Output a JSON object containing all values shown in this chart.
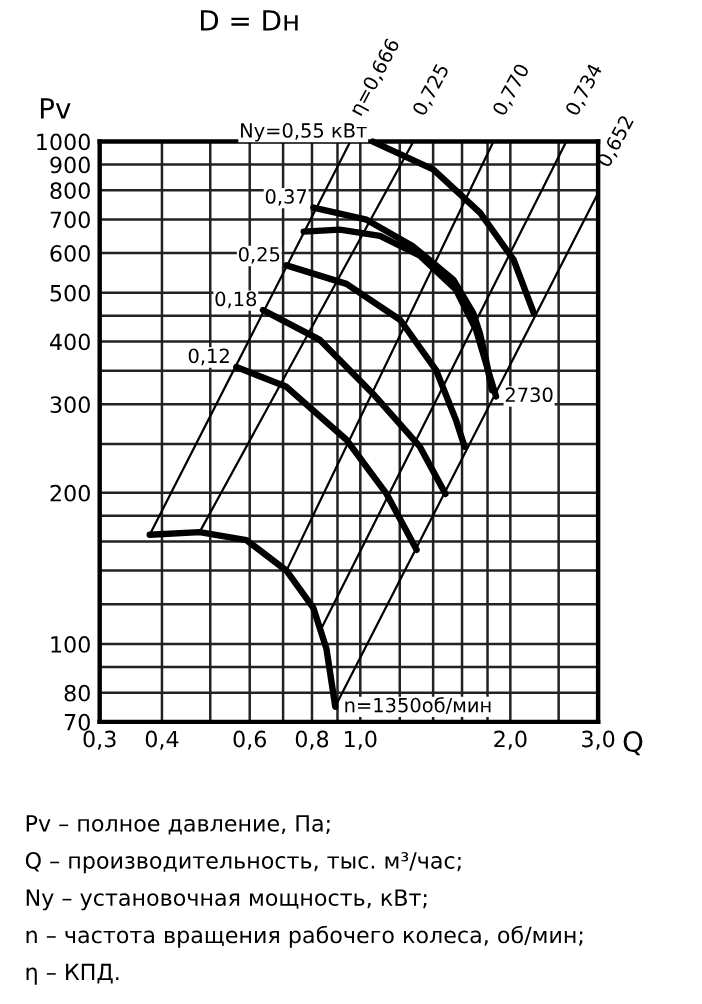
{
  "chart_data": {
    "type": "line",
    "title": "D = Dн",
    "xlabel": "Q",
    "ylabel": "Pv",
    "log": "xy",
    "grid": true,
    "marker": "none",
    "line_style": "solid",
    "xlim": [
      0.3,
      3.0
    ],
    "ylim": [
      70,
      1000
    ],
    "xticks": [
      {
        "value": 0.3,
        "label": "0,3"
      },
      {
        "value": 0.4,
        "label": "0,4"
      },
      {
        "value": 0.5,
        "label": null
      },
      {
        "value": 0.6,
        "label": "0,6"
      },
      {
        "value": 0.7,
        "label": null
      },
      {
        "value": 0.8,
        "label": "0,8"
      },
      {
        "value": 0.9,
        "label": null
      },
      {
        "value": 1.0,
        "label": "1,0"
      },
      {
        "value": 1.2,
        "label": null
      },
      {
        "value": 1.4,
        "label": null
      },
      {
        "value": 1.6,
        "label": null
      },
      {
        "value": 1.8,
        "label": null
      },
      {
        "value": 2.0,
        "label": "2,0"
      },
      {
        "value": 2.5,
        "label": null
      },
      {
        "value": 3.0,
        "label": "3,0"
      }
    ],
    "yticks": [
      70,
      80,
      {
        "value": 90,
        "label": null
      },
      100,
      {
        "value": 120,
        "label": null
      },
      {
        "value": 140,
        "label": null
      },
      {
        "value": 160,
        "label": null
      },
      {
        "value": 180,
        "label": null
      },
      200,
      {
        "value": 250,
        "label": null
      },
      300,
      {
        "value": 350,
        "label": null
      },
      400,
      {
        "value": 450,
        "label": null
      },
      500,
      600,
      700,
      800,
      900,
      1000
    ],
    "series": [
      {
        "color": "#000000",
        "x": [
          1.06,
          1.4,
          1.74,
          2.03,
          2.23
        ],
        "values": [
          1000,
          880,
          721,
          582,
          455
        ]
      },
      {
        "color": "#000000",
        "x": [
          0.805,
          1.029,
          1.278,
          1.537,
          1.686,
          1.738,
          1.788,
          1.837
        ],
        "values": [
          739,
          699,
          618,
          531,
          455,
          415,
          367,
          320
        ]
      },
      {
        "color": "#000000",
        "x": [
          0.77,
          0.91,
          1.095,
          1.317,
          1.556,
          1.707,
          1.804,
          1.872
        ],
        "values": [
          662,
          668,
          649,
          593,
          507,
          422,
          351,
          311
        ]
      },
      {
        "color": "#000000",
        "x": [
          0.711,
          0.938,
          1.201,
          1.419,
          1.556,
          1.619
        ],
        "values": [
          567,
          521,
          442,
          351,
          279,
          247
        ]
      },
      {
        "color": "#000000",
        "x": [
          0.638,
          0.83,
          1.06,
          1.317,
          1.482
        ],
        "values": [
          462,
          403,
          315,
          247,
          199
        ]
      },
      {
        "color": "#000000",
        "x": [
          0.564,
          0.711,
          0.938,
          1.129,
          1.297
        ],
        "values": [
          356,
          325,
          255,
          199,
          154
        ]
      },
      {
        "color": "#000000",
        "x": [
          0.378,
          0.476,
          0.591,
          0.711,
          0.805,
          0.855,
          0.891
        ],
        "values": [
          165,
          167,
          161,
          140,
          118,
          98,
          75
        ]
      },
      {
        "color": "#000000",
        "x": [
          0.378,
          0.955
        ],
        "values": [
          165,
          1000
        ]
      },
      {
        "color": "#000000",
        "x": [
          0.476,
          1.278
        ],
        "values": [
          167,
          1000
        ]
      },
      {
        "color": "#000000",
        "x": [
          0.711,
          1.85
        ],
        "values": [
          140,
          1000
        ]
      },
      {
        "color": "#000000",
        "x": [
          0.83,
          2.59
        ],
        "values": [
          106,
          1000
        ]
      },
      {
        "color": "#000000",
        "x": [
          0.896,
          3.0
        ],
        "values": [
          76,
          790
        ]
      }
    ],
    "annotations": [
      {
        "text": "Nу=0,55 кВт",
        "x": 1.06,
        "y": 1000
      },
      {
        "text": "0,37",
        "x": 0.805,
        "y": 739
      },
      {
        "text": "0,25",
        "x": 0.711,
        "y": 567
      },
      {
        "text": "0,18",
        "x": 0.638,
        "y": 462
      },
      {
        "text": "0,12",
        "x": 0.564,
        "y": 356
      },
      {
        "text": "2730",
        "x": 1.872,
        "y": 311
      },
      {
        "text": "n=1350об/мин",
        "x": 0.891,
        "y": 75
      },
      {
        "text": "η=0,666",
        "x": 0.955,
        "y": 1000
      },
      {
        "text": "0,725",
        "x": 1.278,
        "y": 1000
      },
      {
        "text": "0,770",
        "x": 1.85,
        "y": 1000
      },
      {
        "text": "0,734",
        "x": 2.59,
        "y": 1000
      },
      {
        "text": "0,652",
        "x": 3.0,
        "y": 790
      },
      "Pv – полное давление, Па;",
      "Q – производительность, тыс. м³/час;",
      "Nу – установочная мощность, кВт;",
      "n – частота вращения рабочего колеса, об/мин;",
      "η – КПД."
    ]
  }
}
